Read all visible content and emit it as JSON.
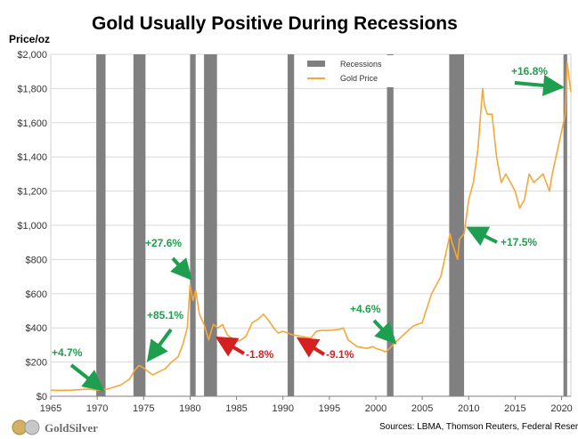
{
  "chart_data": {
    "type": "line",
    "title": "Gold Usually Positive During Recessions",
    "ylabel": "Price/oz",
    "xlim": [
      1965,
      2021
    ],
    "ylim": [
      0,
      2000
    ],
    "x_ticks": [
      "1965",
      "1970",
      "1975",
      "1980",
      "1985",
      "1990",
      "1995",
      "2000",
      "2005",
      "2010",
      "2015",
      "2020"
    ],
    "x_tick_values": [
      1965,
      1970,
      1975,
      1980,
      1985,
      1990,
      1995,
      2000,
      2005,
      2010,
      2015,
      2020
    ],
    "y_ticks": [
      "$0",
      "$200",
      "$400",
      "$600",
      "$800",
      "$1,000",
      "$1,200",
      "$1,400",
      "$1,600",
      "$1,800",
      "$2,000"
    ],
    "y_tick_values": [
      0,
      200,
      400,
      600,
      800,
      1000,
      1200,
      1400,
      1600,
      1800,
      2000
    ],
    "grid": "horizontal",
    "legend_position": "top-center",
    "series": [
      {
        "name": "Gold Price",
        "color": "#f5a83a",
        "x": [
          1965,
          1966,
          1967,
          1968,
          1969,
          1970,
          1971,
          1971.9,
          1972.5,
          1973.5,
          1974,
          1974.5,
          1975,
          1975.6,
          1976,
          1976.7,
          1977.3,
          1978,
          1978.7,
          1979.2,
          1979.7,
          1980.0,
          1980.3,
          1980.6,
          1981,
          1981.5,
          1982,
          1982.5,
          1983,
          1983.5,
          1984,
          1985,
          1985.5,
          1986,
          1986.7,
          1987.3,
          1987.9,
          1988.5,
          1989,
          1989.5,
          1990,
          1991,
          1992,
          1993,
          1993.6,
          1994,
          1995,
          1996,
          1996.5,
          1997,
          1998,
          1999,
          1999.7,
          2000,
          2000.6,
          2001,
          2001.3,
          2002,
          2003,
          2004,
          2005,
          2006,
          2006.5,
          2007,
          2008,
          2008.2,
          2008.8,
          2009,
          2009.5,
          2010,
          2010.5,
          2011,
          2011.5,
          2011.7,
          2012,
          2012.5,
          2013,
          2013.5,
          2014,
          2014.5,
          2015,
          2015.5,
          2016,
          2016.5,
          2017,
          2018,
          2018.7,
          2019,
          2019.6,
          2020,
          2020.4,
          2020.6,
          2021
        ],
        "values": [
          35,
          35,
          35,
          38,
          42,
          36,
          41,
          55,
          65,
          100,
          150,
          180,
          165,
          140,
          125,
          145,
          160,
          200,
          230,
          300,
          400,
          650,
          560,
          620,
          480,
          420,
          330,
          420,
          400,
          420,
          360,
          320,
          330,
          350,
          430,
          450,
          480,
          440,
          400,
          370,
          380,
          360,
          350,
          340,
          380,
          385,
          385,
          390,
          400,
          330,
          290,
          280,
          290,
          280,
          270,
          260,
          270,
          310,
          360,
          410,
          430,
          600,
          650,
          700,
          950,
          900,
          800,
          920,
          950,
          1150,
          1250,
          1450,
          1800,
          1700,
          1650,
          1650,
          1400,
          1250,
          1300,
          1250,
          1200,
          1100,
          1150,
          1300,
          1250,
          1300,
          1200,
          1300,
          1450,
          1550,
          1650,
          1950,
          1780
        ]
      }
    ],
    "recessions": [
      {
        "start": 1969.9,
        "end": 1970.9
      },
      {
        "start": 1973.9,
        "end": 1975.2
      },
      {
        "start": 1980.0,
        "end": 1980.6
      },
      {
        "start": 1981.5,
        "end": 1982.9
      },
      {
        "start": 1990.5,
        "end": 1991.2
      },
      {
        "start": 2001.2,
        "end": 2001.9
      },
      {
        "start": 2007.9,
        "end": 2009.5
      },
      {
        "start": 2020.2,
        "end": 2020.6
      }
    ],
    "legend": [
      {
        "label": "Recessions",
        "color": "#808080"
      },
      {
        "label": "Gold Price",
        "color": "#f5a83a"
      }
    ],
    "annotations": [
      {
        "text": "+4.7%",
        "color": "green"
      },
      {
        "text": "+85.1%",
        "color": "green"
      },
      {
        "text": "+27.6%",
        "color": "green"
      },
      {
        "text": "-1.8%",
        "color": "red"
      },
      {
        "text": "-9.1%",
        "color": "red"
      },
      {
        "text": "+4.6%",
        "color": "green"
      },
      {
        "text": "+17.5%",
        "color": "green"
      },
      {
        "text": "+16.8%",
        "color": "green"
      }
    ],
    "source": "Sources: LBMA, Thomson Reuters, Federal Reserve"
  },
  "logo": {
    "text": "GoldSilver"
  }
}
